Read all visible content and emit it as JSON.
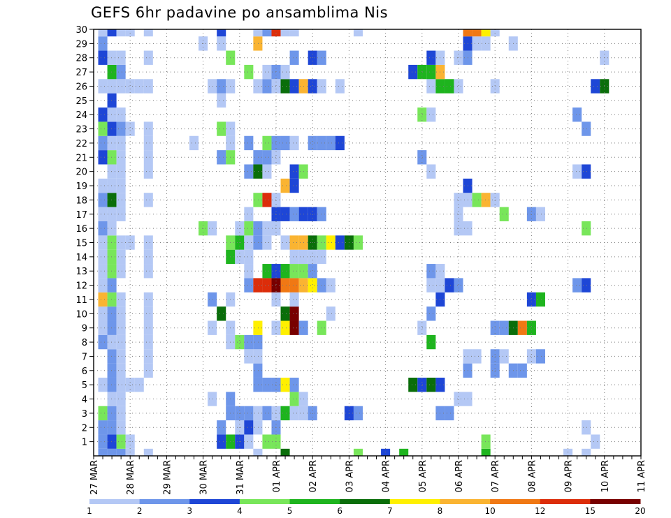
{
  "chart_data": {
    "type": "heatmap",
    "title": "GEFS 6hr padavine po ansamblima Nis",
    "xlabel": "",
    "ylabel": "",
    "x_ticks": [
      "27 MAR",
      "28 MAR",
      "29 MAR",
      "30 MAR",
      "31 MAR",
      "01 APR",
      "02 APR",
      "03 APR",
      "04 APR",
      "05 APR",
      "06 APR",
      "07 APR",
      "08 APR",
      "09 APR",
      "10 APR",
      "11 APR"
    ],
    "y_ticks": [
      "1",
      "2",
      "3",
      "4",
      "5",
      "6",
      "7",
      "8",
      "9",
      "10",
      "11",
      "12",
      "13",
      "14",
      "15",
      "16",
      "17",
      "18",
      "19",
      "20",
      "21",
      "22",
      "23",
      "24",
      "25",
      "26",
      "27",
      "28",
      "29",
      "30"
    ],
    "ylim": [
      0,
      30
    ],
    "time_steps": 60,
    "grid": true,
    "colorbar": {
      "levels": [
        "1",
        "2",
        "3",
        "4",
        "5",
        "6",
        "7",
        "8",
        "10",
        "12",
        "15",
        "20"
      ],
      "colors": [
        "#b4c8f5",
        "#6e96ea",
        "#1e46d6",
        "#78e65a",
        "#1eb41e",
        "#0a6e0a",
        "#fff000",
        "#fab432",
        "#f07814",
        "#dc2d0a",
        "#780000"
      ]
    },
    "cells": [
      [
        1,
        0,
        2
      ],
      [
        2,
        0,
        2
      ],
      [
        3,
        0,
        2
      ],
      [
        4,
        0,
        1
      ],
      [
        6,
        0,
        1
      ],
      [
        18,
        0,
        1
      ],
      [
        21,
        0,
        6
      ],
      [
        29,
        0,
        4
      ],
      [
        32,
        0,
        3
      ],
      [
        34,
        0,
        5
      ],
      [
        43,
        0,
        5
      ],
      [
        52,
        0,
        1
      ],
      [
        54,
        0,
        1
      ],
      [
        1,
        1,
        2
      ],
      [
        2,
        1,
        3
      ],
      [
        3,
        1,
        4
      ],
      [
        4,
        1,
        1
      ],
      [
        14,
        1,
        3
      ],
      [
        15,
        1,
        5
      ],
      [
        16,
        1,
        3
      ],
      [
        17,
        1,
        1
      ],
      [
        19,
        1,
        4
      ],
      [
        20,
        1,
        4
      ],
      [
        43,
        1,
        4
      ],
      [
        55,
        1,
        1
      ],
      [
        1,
        2,
        2
      ],
      [
        2,
        2,
        2
      ],
      [
        3,
        2,
        1
      ],
      [
        14,
        2,
        2
      ],
      [
        16,
        2,
        1
      ],
      [
        17,
        2,
        3
      ],
      [
        18,
        2,
        1
      ],
      [
        20,
        2,
        2
      ],
      [
        54,
        2,
        1
      ],
      [
        1,
        3,
        4
      ],
      [
        2,
        3,
        2
      ],
      [
        3,
        3,
        1
      ],
      [
        15,
        3,
        2
      ],
      [
        16,
        3,
        2
      ],
      [
        17,
        3,
        2
      ],
      [
        18,
        3,
        1
      ],
      [
        19,
        3,
        2
      ],
      [
        20,
        3,
        1
      ],
      [
        21,
        3,
        5
      ],
      [
        22,
        3,
        1
      ],
      [
        23,
        3,
        1
      ],
      [
        24,
        3,
        2
      ],
      [
        28,
        3,
        3
      ],
      [
        29,
        3,
        2
      ],
      [
        38,
        3,
        2
      ],
      [
        39,
        3,
        2
      ],
      [
        2,
        4,
        1
      ],
      [
        3,
        4,
        1
      ],
      [
        13,
        4,
        1
      ],
      [
        15,
        4,
        2
      ],
      [
        22,
        4,
        4
      ],
      [
        23,
        4,
        1
      ],
      [
        40,
        4,
        1
      ],
      [
        41,
        4,
        1
      ],
      [
        1,
        5,
        1
      ],
      [
        2,
        5,
        2
      ],
      [
        3,
        5,
        1
      ],
      [
        4,
        5,
        1
      ],
      [
        5,
        5,
        1
      ],
      [
        18,
        5,
        2
      ],
      [
        19,
        5,
        2
      ],
      [
        20,
        5,
        2
      ],
      [
        21,
        5,
        7
      ],
      [
        22,
        5,
        2
      ],
      [
        35,
        5,
        6
      ],
      [
        36,
        5,
        3
      ],
      [
        37,
        5,
        6
      ],
      [
        38,
        5,
        3
      ],
      [
        2,
        6,
        2
      ],
      [
        3,
        6,
        1
      ],
      [
        6,
        6,
        1
      ],
      [
        18,
        6,
        2
      ],
      [
        41,
        6,
        2
      ],
      [
        44,
        6,
        2
      ],
      [
        46,
        6,
        2
      ],
      [
        47,
        6,
        2
      ],
      [
        2,
        7,
        2
      ],
      [
        3,
        7,
        1
      ],
      [
        6,
        7,
        1
      ],
      [
        17,
        7,
        1
      ],
      [
        18,
        7,
        1
      ],
      [
        41,
        7,
        1
      ],
      [
        42,
        7,
        1
      ],
      [
        44,
        7,
        2
      ],
      [
        45,
        7,
        1
      ],
      [
        48,
        7,
        1
      ],
      [
        49,
        7,
        2
      ],
      [
        1,
        8,
        2
      ],
      [
        2,
        8,
        1
      ],
      [
        3,
        8,
        1
      ],
      [
        6,
        8,
        1
      ],
      [
        15,
        8,
        1
      ],
      [
        16,
        8,
        4
      ],
      [
        17,
        8,
        2
      ],
      [
        18,
        8,
        2
      ],
      [
        37,
        8,
        5
      ],
      [
        1,
        9,
        1
      ],
      [
        2,
        9,
        2
      ],
      [
        3,
        9,
        1
      ],
      [
        6,
        9,
        1
      ],
      [
        13,
        9,
        1
      ],
      [
        15,
        9,
        1
      ],
      [
        18,
        9,
        7
      ],
      [
        20,
        9,
        1
      ],
      [
        21,
        9,
        7
      ],
      [
        22,
        9,
        11
      ],
      [
        23,
        9,
        2
      ],
      [
        25,
        9,
        4
      ],
      [
        36,
        9,
        1
      ],
      [
        44,
        9,
        2
      ],
      [
        45,
        9,
        2
      ],
      [
        46,
        9,
        6
      ],
      [
        47,
        9,
        9
      ],
      [
        48,
        9,
        5
      ],
      [
        1,
        10,
        1
      ],
      [
        2,
        10,
        2
      ],
      [
        3,
        10,
        1
      ],
      [
        6,
        10,
        1
      ],
      [
        14,
        10,
        6
      ],
      [
        21,
        10,
        6
      ],
      [
        22,
        10,
        11
      ],
      [
        26,
        10,
        1
      ],
      [
        37,
        10,
        2
      ],
      [
        1,
        11,
        8
      ],
      [
        2,
        11,
        4
      ],
      [
        3,
        11,
        1
      ],
      [
        6,
        11,
        1
      ],
      [
        13,
        11,
        2
      ],
      [
        15,
        11,
        1
      ],
      [
        20,
        11,
        1
      ],
      [
        22,
        11,
        1
      ],
      [
        38,
        11,
        3
      ],
      [
        48,
        11,
        3
      ],
      [
        49,
        11,
        5
      ],
      [
        1,
        12,
        1
      ],
      [
        2,
        12,
        2
      ],
      [
        17,
        12,
        2
      ],
      [
        18,
        12,
        10
      ],
      [
        19,
        12,
        10
      ],
      [
        20,
        12,
        11
      ],
      [
        21,
        12,
        9
      ],
      [
        22,
        12,
        9
      ],
      [
        23,
        12,
        8
      ],
      [
        24,
        12,
        7
      ],
      [
        25,
        12,
        2
      ],
      [
        26,
        12,
        1
      ],
      [
        37,
        12,
        1
      ],
      [
        38,
        12,
        1
      ],
      [
        39,
        12,
        3
      ],
      [
        40,
        12,
        2
      ],
      [
        53,
        12,
        2
      ],
      [
        54,
        12,
        3
      ],
      [
        1,
        13,
        1
      ],
      [
        2,
        13,
        4
      ],
      [
        3,
        13,
        1
      ],
      [
        6,
        13,
        1
      ],
      [
        17,
        13,
        1
      ],
      [
        19,
        13,
        5
      ],
      [
        20,
        13,
        3
      ],
      [
        21,
        13,
        5
      ],
      [
        22,
        13,
        4
      ],
      [
        23,
        13,
        4
      ],
      [
        24,
        13,
        2
      ],
      [
        37,
        13,
        2
      ],
      [
        38,
        13,
        1
      ],
      [
        1,
        14,
        1
      ],
      [
        2,
        14,
        4
      ],
      [
        3,
        14,
        1
      ],
      [
        6,
        14,
        1
      ],
      [
        15,
        14,
        5
      ],
      [
        16,
        14,
        1
      ],
      [
        17,
        14,
        1
      ],
      [
        22,
        14,
        1
      ],
      [
        23,
        14,
        1
      ],
      [
        24,
        14,
        1
      ],
      [
        25,
        14,
        1
      ],
      [
        1,
        15,
        1
      ],
      [
        2,
        15,
        4
      ],
      [
        3,
        15,
        1
      ],
      [
        4,
        15,
        1
      ],
      [
        6,
        15,
        1
      ],
      [
        15,
        15,
        4
      ],
      [
        16,
        15,
        5
      ],
      [
        17,
        15,
        1
      ],
      [
        18,
        15,
        2
      ],
      [
        19,
        15,
        1
      ],
      [
        21,
        15,
        1
      ],
      [
        22,
        15,
        8
      ],
      [
        23,
        15,
        8
      ],
      [
        24,
        15,
        6
      ],
      [
        25,
        15,
        4
      ],
      [
        26,
        15,
        7
      ],
      [
        27,
        15,
        3
      ],
      [
        28,
        15,
        6
      ],
      [
        29,
        15,
        4
      ],
      [
        1,
        16,
        2
      ],
      [
        2,
        16,
        1
      ],
      [
        12,
        16,
        4
      ],
      [
        13,
        16,
        1
      ],
      [
        16,
        16,
        1
      ],
      [
        17,
        16,
        4
      ],
      [
        18,
        16,
        2
      ],
      [
        19,
        16,
        1
      ],
      [
        20,
        16,
        1
      ],
      [
        40,
        16,
        1
      ],
      [
        41,
        16,
        1
      ],
      [
        54,
        16,
        4
      ],
      [
        1,
        17,
        1
      ],
      [
        2,
        17,
        1
      ],
      [
        3,
        17,
        1
      ],
      [
        17,
        17,
        1
      ],
      [
        20,
        17,
        3
      ],
      [
        21,
        17,
        3
      ],
      [
        22,
        17,
        2
      ],
      [
        23,
        17,
        3
      ],
      [
        24,
        17,
        3
      ],
      [
        25,
        17,
        2
      ],
      [
        40,
        17,
        1
      ],
      [
        45,
        17,
        4
      ],
      [
        48,
        17,
        2
      ],
      [
        49,
        17,
        1
      ],
      [
        1,
        18,
        2
      ],
      [
        2,
        18,
        6
      ],
      [
        3,
        18,
        1
      ],
      [
        6,
        18,
        1
      ],
      [
        18,
        18,
        4
      ],
      [
        19,
        18,
        10
      ],
      [
        20,
        18,
        1
      ],
      [
        40,
        18,
        1
      ],
      [
        41,
        18,
        1
      ],
      [
        42,
        18,
        4
      ],
      [
        43,
        18,
        8
      ],
      [
        44,
        18,
        1
      ],
      [
        1,
        19,
        1
      ],
      [
        2,
        19,
        1
      ],
      [
        3,
        19,
        1
      ],
      [
        21,
        19,
        8
      ],
      [
        22,
        19,
        3
      ],
      [
        41,
        19,
        3
      ],
      [
        2,
        20,
        1
      ],
      [
        3,
        20,
        1
      ],
      [
        6,
        20,
        1
      ],
      [
        17,
        20,
        2
      ],
      [
        18,
        20,
        6
      ],
      [
        19,
        20,
        1
      ],
      [
        22,
        20,
        3
      ],
      [
        23,
        20,
        4
      ],
      [
        37,
        20,
        1
      ],
      [
        53,
        20,
        1
      ],
      [
        54,
        20,
        3
      ],
      [
        1,
        21,
        3
      ],
      [
        2,
        21,
        4
      ],
      [
        3,
        21,
        1
      ],
      [
        6,
        21,
        1
      ],
      [
        14,
        21,
        2
      ],
      [
        15,
        21,
        4
      ],
      [
        18,
        21,
        2
      ],
      [
        19,
        21,
        2
      ],
      [
        20,
        21,
        1
      ],
      [
        36,
        21,
        2
      ],
      [
        1,
        22,
        2
      ],
      [
        2,
        22,
        1
      ],
      [
        3,
        22,
        1
      ],
      [
        6,
        22,
        1
      ],
      [
        11,
        22,
        1
      ],
      [
        15,
        22,
        1
      ],
      [
        17,
        22,
        2
      ],
      [
        19,
        22,
        4
      ],
      [
        20,
        22,
        2
      ],
      [
        21,
        22,
        2
      ],
      [
        22,
        22,
        1
      ],
      [
        24,
        22,
        2
      ],
      [
        25,
        22,
        2
      ],
      [
        26,
        22,
        2
      ],
      [
        27,
        22,
        3
      ],
      [
        1,
        23,
        4
      ],
      [
        2,
        23,
        3
      ],
      [
        3,
        23,
        2
      ],
      [
        4,
        23,
        1
      ],
      [
        6,
        23,
        1
      ],
      [
        14,
        23,
        4
      ],
      [
        15,
        23,
        1
      ],
      [
        54,
        23,
        2
      ],
      [
        1,
        24,
        3
      ],
      [
        2,
        24,
        1
      ],
      [
        3,
        24,
        1
      ],
      [
        36,
        24,
        4
      ],
      [
        37,
        24,
        1
      ],
      [
        53,
        24,
        2
      ],
      [
        2,
        25,
        3
      ],
      [
        14,
        25,
        1
      ],
      [
        1,
        26,
        1
      ],
      [
        2,
        26,
        1
      ],
      [
        3,
        26,
        1
      ],
      [
        4,
        26,
        1
      ],
      [
        5,
        26,
        1
      ],
      [
        6,
        26,
        1
      ],
      [
        13,
        26,
        1
      ],
      [
        14,
        26,
        2
      ],
      [
        15,
        26,
        1
      ],
      [
        18,
        26,
        1
      ],
      [
        19,
        26,
        2
      ],
      [
        20,
        26,
        1
      ],
      [
        21,
        26,
        6
      ],
      [
        22,
        26,
        3
      ],
      [
        23,
        26,
        8
      ],
      [
        24,
        26,
        3
      ],
      [
        25,
        26,
        1
      ],
      [
        27,
        26,
        1
      ],
      [
        37,
        26,
        1
      ],
      [
        38,
        26,
        5
      ],
      [
        39,
        26,
        5
      ],
      [
        40,
        26,
        1
      ],
      [
        44,
        26,
        1
      ],
      [
        55,
        26,
        3
      ],
      [
        56,
        26,
        6
      ],
      [
        2,
        27,
        5
      ],
      [
        3,
        27,
        2
      ],
      [
        17,
        27,
        4
      ],
      [
        19,
        27,
        1
      ],
      [
        20,
        27,
        2
      ],
      [
        21,
        27,
        1
      ],
      [
        35,
        27,
        3
      ],
      [
        36,
        27,
        5
      ],
      [
        37,
        27,
        5
      ],
      [
        38,
        27,
        8
      ],
      [
        1,
        28,
        3
      ],
      [
        2,
        28,
        1
      ],
      [
        3,
        28,
        1
      ],
      [
        6,
        28,
        1
      ],
      [
        15,
        28,
        4
      ],
      [
        22,
        28,
        2
      ],
      [
        24,
        28,
        3
      ],
      [
        25,
        28,
        2
      ],
      [
        37,
        28,
        3
      ],
      [
        38,
        28,
        1
      ],
      [
        40,
        28,
        1
      ],
      [
        41,
        28,
        2
      ],
      [
        56,
        28,
        1
      ],
      [
        1,
        29,
        2
      ],
      [
        12,
        29,
        1
      ],
      [
        14,
        29,
        1
      ],
      [
        18,
        29,
        8
      ],
      [
        41,
        29,
        3
      ],
      [
        42,
        29,
        1
      ],
      [
        43,
        29,
        1
      ],
      [
        46,
        29,
        1
      ],
      [
        1,
        30,
        1
      ],
      [
        2,
        30,
        3
      ],
      [
        3,
        30,
        1
      ],
      [
        4,
        30,
        1
      ],
      [
        6,
        30,
        1
      ],
      [
        14,
        30,
        3
      ],
      [
        18,
        30,
        1
      ],
      [
        19,
        30,
        2
      ],
      [
        20,
        30,
        10
      ],
      [
        21,
        30,
        1
      ],
      [
        22,
        30,
        1
      ],
      [
        29,
        30,
        1
      ],
      [
        41,
        30,
        9
      ],
      [
        42,
        30,
        9
      ],
      [
        43,
        30,
        7
      ],
      [
        44,
        30,
        1
      ]
    ]
  }
}
